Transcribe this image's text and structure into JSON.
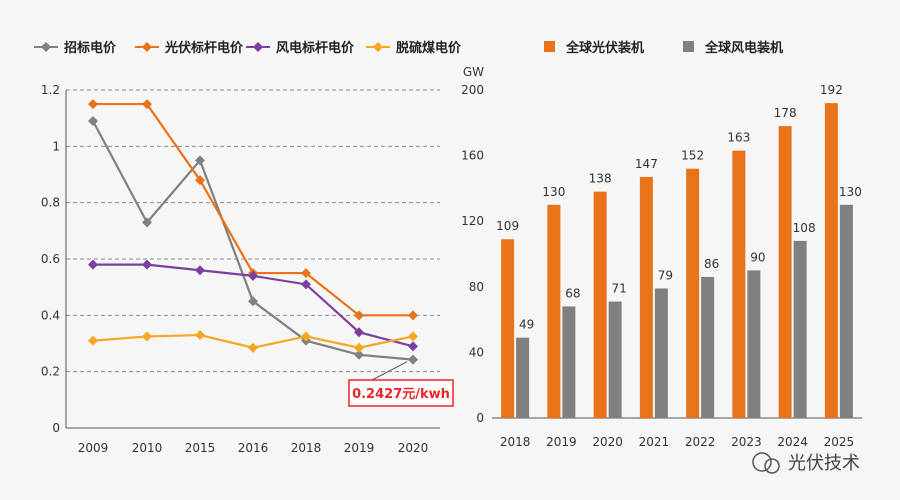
{
  "colors": {
    "zhaobiao": "#808080",
    "guangfu": "#e8731a",
    "fengdian": "#7b3fa0",
    "tuoliu": "#f5a623",
    "bar_pv": "#e8731a",
    "bar_wind": "#808080",
    "callout": "#e8262c",
    "grid": "#888888"
  },
  "chart_data": [
    {
      "type": "line",
      "categories": [
        "2009",
        "2010",
        "2015",
        "2016",
        "2018",
        "2019",
        "2020"
      ],
      "ylim": [
        0,
        1.2
      ],
      "yticks": [
        "0",
        "0.2",
        "0.4",
        "0.6",
        "0.8",
        "1",
        "1.2"
      ],
      "grid": "horizontal-dashed",
      "legend_position": "top",
      "series": [
        {
          "name": "招标电价",
          "color_key": "zhaobiao",
          "marker": "diamond",
          "values": [
            1.09,
            0.73,
            0.95,
            0.45,
            0.31,
            0.26,
            0.2427
          ]
        },
        {
          "name": "光伏标杆电价",
          "color_key": "guangfu",
          "marker": "diamond",
          "values": [
            1.15,
            1.15,
            0.88,
            0.55,
            0.55,
            0.4,
            0.4
          ]
        },
        {
          "name": "风电标杆电价",
          "color_key": "fengdian",
          "marker": "diamond",
          "values": [
            0.58,
            0.58,
            0.56,
            0.54,
            0.51,
            0.34,
            0.29
          ]
        },
        {
          "name": "脱硫煤电价",
          "color_key": "tuoliu",
          "marker": "diamond",
          "values": [
            0.31,
            0.325,
            0.33,
            0.285,
            0.325,
            0.285,
            0.325
          ]
        }
      ],
      "annotation": {
        "text": "0.2427元/kwh"
      }
    },
    {
      "type": "bar",
      "categories": [
        "2018",
        "2019",
        "2020",
        "2021",
        "2022",
        "2023",
        "2024",
        "2025"
      ],
      "ylabel": "GW",
      "ylim": [
        0,
        200
      ],
      "yticks": [
        "0",
        "40",
        "80",
        "120",
        "160",
        "200"
      ],
      "legend_position": "top",
      "series": [
        {
          "name": "全球光伏装机",
          "color_key": "bar_pv",
          "values": [
            109,
            130,
            138,
            147,
            152,
            163,
            178,
            192
          ]
        },
        {
          "name": "全球风电装机",
          "color_key": "bar_wind",
          "values": [
            49,
            68,
            71,
            79,
            86,
            90,
            108,
            130
          ]
        }
      ]
    }
  ],
  "watermark": {
    "text": "光伏技术"
  }
}
